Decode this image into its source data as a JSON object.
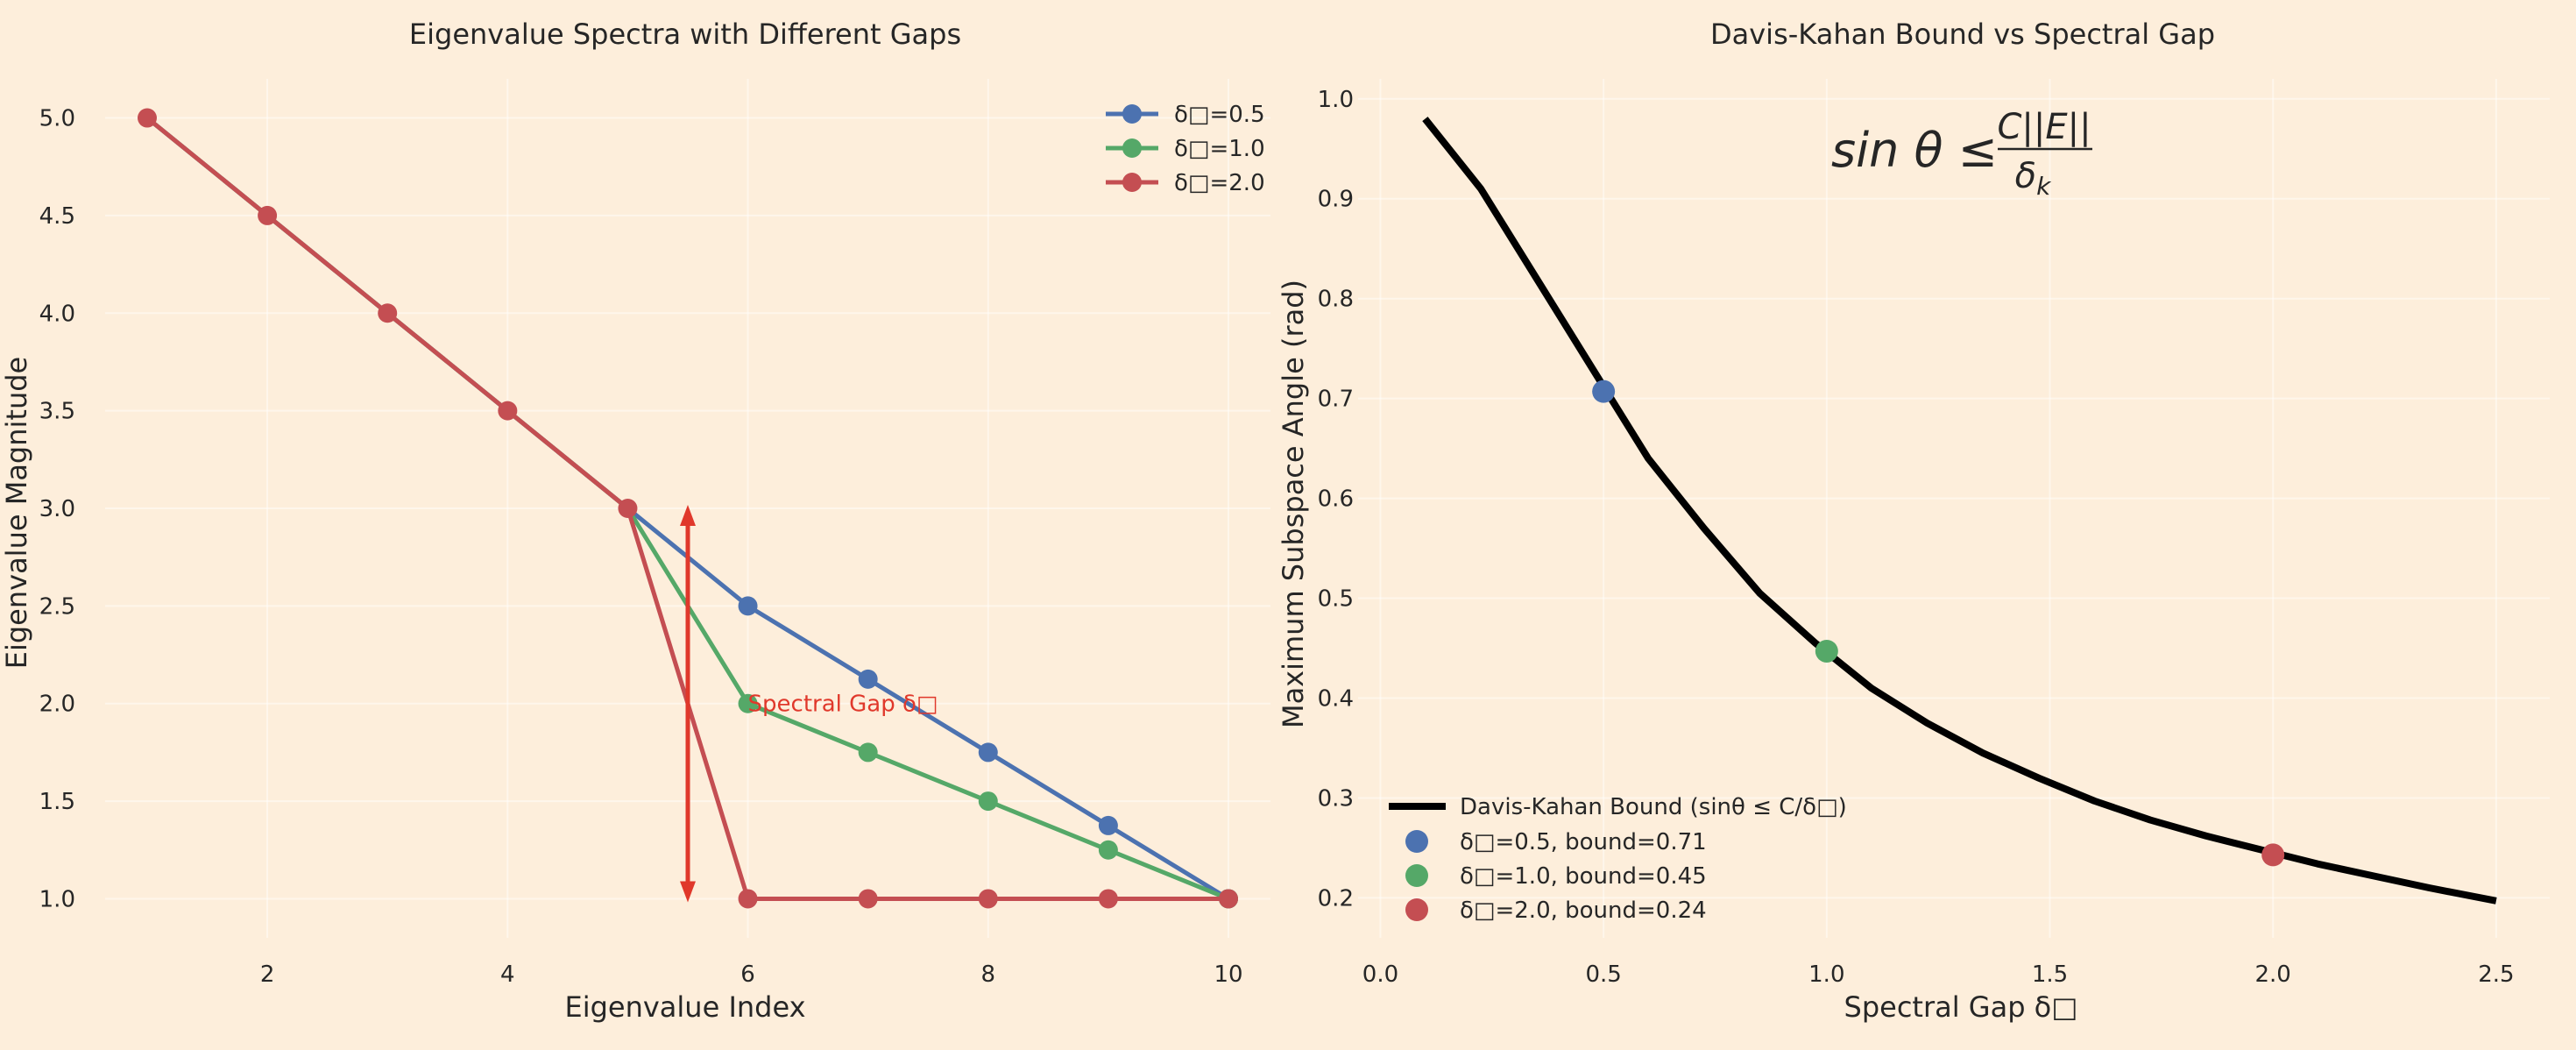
{
  "chart_data": [
    {
      "type": "line",
      "title": "Eigenvalue Spectra with Different Gaps",
      "xlabel": "Eigenvalue Index",
      "ylabel": "Eigenvalue Magnitude",
      "xlim": [
        0.65,
        10.35
      ],
      "ylim": [
        0.8,
        5.2
      ],
      "xticks": [
        "2",
        "4",
        "6",
        "8",
        "10"
      ],
      "yticks": [
        "1.0",
        "1.5",
        "2.0",
        "2.5",
        "3.0",
        "3.5",
        "4.0",
        "4.5",
        "5.0"
      ],
      "grid": true,
      "legend_position": "top-right",
      "x": [
        1,
        2,
        3,
        4,
        5,
        6,
        7,
        8,
        9,
        10
      ],
      "series": [
        {
          "name": "δ□=0.5",
          "color": "#4c72b0",
          "values": [
            5.0,
            4.5,
            4.0,
            3.5,
            3.0,
            2.5,
            2.125,
            1.75,
            1.375,
            1.0
          ]
        },
        {
          "name": "δ□=1.0",
          "color": "#55a868",
          "values": [
            5.0,
            4.5,
            4.0,
            3.5,
            3.0,
            2.0,
            1.75,
            1.5,
            1.25,
            1.0
          ]
        },
        {
          "name": "δ□=2.0",
          "color": "#c44e52",
          "values": [
            5.0,
            4.5,
            4.0,
            3.5,
            3.0,
            1.0,
            1.0,
            1.0,
            1.0,
            1.0
          ]
        }
      ],
      "annotation": {
        "text": "Spectral Gap δ□",
        "color": "#e0382b",
        "arrow_x": 5.5,
        "arrow_y": [
          1.0,
          3.0
        ],
        "text_x": 6.0,
        "text_y": 2.0
      }
    },
    {
      "type": "line",
      "title": "Davis-Kahan Bound vs Spectral Gap",
      "xlabel": "Spectral Gap δ□",
      "ylabel": "Maximum Subspace Angle (rad)",
      "xlim": [
        -0.05,
        2.62
      ],
      "ylim": [
        0.16,
        1.02
      ],
      "xticks": [
        "0.0",
        "0.5",
        "1.0",
        "1.5",
        "2.0",
        "2.5"
      ],
      "yticks": [
        "0.2",
        "0.3",
        "0.4",
        "0.5",
        "0.6",
        "0.7",
        "0.8",
        "0.9",
        "1.0"
      ],
      "grid": true,
      "legend_position": "bottom-left",
      "formula": {
        "lhs": "sin θ ≤ ",
        "numerator": "C||E||",
        "denominator": "δ",
        "denominator_sub": "k"
      },
      "curve": {
        "name": "Davis-Kahan Bound (sinθ ≤ C/δ□)",
        "color": "#000000",
        "x": [
          0.1,
          0.225,
          0.35,
          0.475,
          0.6,
          0.725,
          0.85,
          0.975,
          1.1,
          1.225,
          1.35,
          1.475,
          1.6,
          1.725,
          1.85,
          1.975,
          2.1,
          2.225,
          2.35,
          2.5
        ],
        "y": [
          0.98,
          0.91,
          0.82,
          0.73,
          0.64,
          0.57,
          0.505,
          0.455,
          0.41,
          0.375,
          0.345,
          0.32,
          0.297,
          0.278,
          0.262,
          0.248,
          0.234,
          0.222,
          0.21,
          0.197
        ]
      },
      "points": [
        {
          "name": "δ□=0.5, bound=0.71",
          "x": 0.5,
          "y": 0.707,
          "color": "#4c72b0"
        },
        {
          "name": "δ□=1.0, bound=0.45",
          "x": 1.0,
          "y": 0.447,
          "color": "#55a868"
        },
        {
          "name": "δ□=2.0, bound=0.24",
          "x": 2.0,
          "y": 0.243,
          "color": "#c44e52"
        }
      ]
    }
  ]
}
